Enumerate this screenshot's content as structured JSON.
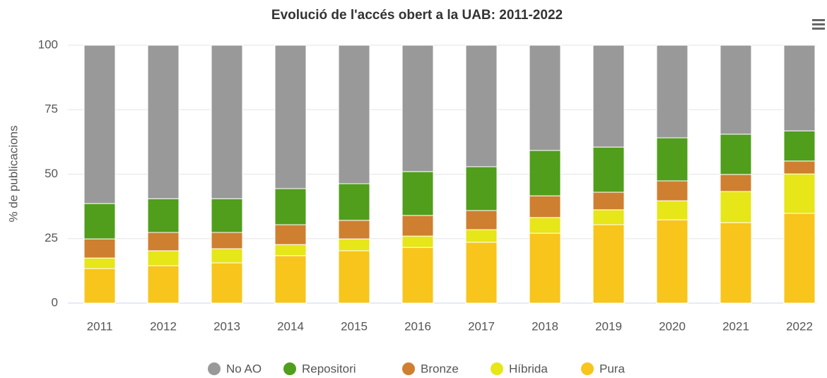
{
  "chart_data": {
    "type": "stacked_bar",
    "title": "Evolució de l'accés obert a la UAB: 2011-2022",
    "y_label": "% de publicacions",
    "categories": [
      "2011",
      "2012",
      "2013",
      "2014",
      "2015",
      "2016",
      "2017",
      "2018",
      "2019",
      "2020",
      "2021",
      "2022"
    ],
    "series": [
      {
        "name": "No AO",
        "color": "#999999",
        "values": [
          61.4,
          59.5,
          59.5,
          55.6,
          53.7,
          49.0,
          47.1,
          40.8,
          39.5,
          35.9,
          34.5,
          33.2
        ]
      },
      {
        "name": "Repositori",
        "color": "#509e1c",
        "values": [
          13.7,
          13.1,
          13.1,
          14.0,
          14.2,
          17.0,
          17.0,
          17.6,
          17.5,
          16.7,
          15.6,
          11.7
        ]
      },
      {
        "name": "Bronze",
        "color": "#cf7f30",
        "values": [
          7.4,
          7.1,
          6.3,
          7.7,
          7.2,
          8.0,
          7.4,
          8.4,
          6.8,
          7.7,
          6.6,
          5.0
        ]
      },
      {
        "name": "Híbrida",
        "color": "#e6e619",
        "values": [
          4.1,
          5.8,
          5.5,
          4.3,
          4.6,
          4.4,
          4.9,
          6.1,
          5.8,
          7.4,
          12.1,
          15.3
        ]
      },
      {
        "name": "Pura",
        "color": "#f7c51c",
        "values": [
          13.4,
          14.5,
          15.6,
          18.4,
          20.3,
          21.6,
          23.6,
          27.1,
          30.4,
          32.3,
          31.2,
          34.8
        ]
      }
    ],
    "ylim": [
      0,
      100
    ],
    "yticks": [
      0,
      25,
      50,
      75,
      100
    ],
    "grid": true,
    "legend": "bottom"
  }
}
